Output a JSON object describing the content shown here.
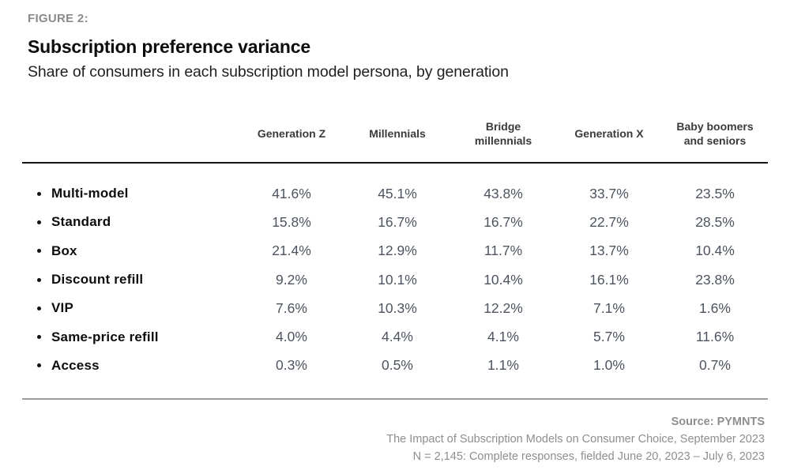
{
  "header": {
    "figure_label": "FIGURE 2:",
    "title": "Subscription preference variance",
    "subtitle": "Share of consumers in each subscription model persona, by generation"
  },
  "table": {
    "columns": [
      "Generation Z",
      "Millennials",
      "Bridge\nmillennials",
      "Generation X",
      "Baby boomers\nand seniors"
    ],
    "rows": [
      {
        "label": "Multi-model",
        "values": [
          "41.6%",
          "45.1%",
          "43.8%",
          "33.7%",
          "23.5%"
        ]
      },
      {
        "label": "Standard",
        "values": [
          "15.8%",
          "16.7%",
          "16.7%",
          "22.7%",
          "28.5%"
        ]
      },
      {
        "label": "Box",
        "values": [
          "21.4%",
          "12.9%",
          "11.7%",
          "13.7%",
          "10.4%"
        ]
      },
      {
        "label": "Discount refill",
        "values": [
          "9.2%",
          "10.1%",
          "10.4%",
          "16.1%",
          "23.8%"
        ]
      },
      {
        "label": "VIP",
        "values": [
          "7.6%",
          "10.3%",
          "12.2%",
          "7.1%",
          "1.6%"
        ]
      },
      {
        "label": "Same-price refill",
        "values": [
          "4.0%",
          "4.4%",
          "4.1%",
          "5.7%",
          "11.6%"
        ]
      },
      {
        "label": "Access",
        "values": [
          "0.3%",
          "0.5%",
          "1.1%",
          "1.0%",
          "0.7%"
        ]
      }
    ]
  },
  "footer": {
    "source": "Source: PYMNTS",
    "study": "The Impact of Subscription Models on Consumer Choice, September 2023",
    "sample": "N = 2,145: Complete responses, fielded June 20, 2023 – July 6, 2023"
  },
  "colors": {
    "figure_label": "#8a8a8a",
    "title": "#0d0d0d",
    "column_header": "#3b3b3b",
    "value_text": "#4d5460",
    "top_rule": "#161616",
    "bottom_rule": "#9c9c9c",
    "footer_text": "#8e8e8e"
  },
  "chart_data": {
    "type": "table",
    "title": "Subscription preference variance",
    "subtitle": "Share of consumers in each subscription model persona, by generation",
    "unit": "%",
    "categories": [
      "Generation Z",
      "Millennials",
      "Bridge millennials",
      "Generation X",
      "Baby boomers and seniors"
    ],
    "series": [
      {
        "name": "Multi-model",
        "values": [
          41.6,
          45.1,
          43.8,
          33.7,
          23.5
        ]
      },
      {
        "name": "Standard",
        "values": [
          15.8,
          16.7,
          16.7,
          22.7,
          28.5
        ]
      },
      {
        "name": "Box",
        "values": [
          21.4,
          12.9,
          11.7,
          13.7,
          10.4
        ]
      },
      {
        "name": "Discount refill",
        "values": [
          9.2,
          10.1,
          10.4,
          16.1,
          23.8
        ]
      },
      {
        "name": "VIP",
        "values": [
          7.6,
          10.3,
          12.2,
          7.1,
          1.6
        ]
      },
      {
        "name": "Same-price refill",
        "values": [
          4.0,
          4.4,
          4.1,
          5.7,
          11.6
        ]
      },
      {
        "name": "Access",
        "values": [
          0.3,
          0.5,
          1.1,
          1.0,
          0.7
        ]
      }
    ],
    "source": "PYMNTS"
  }
}
